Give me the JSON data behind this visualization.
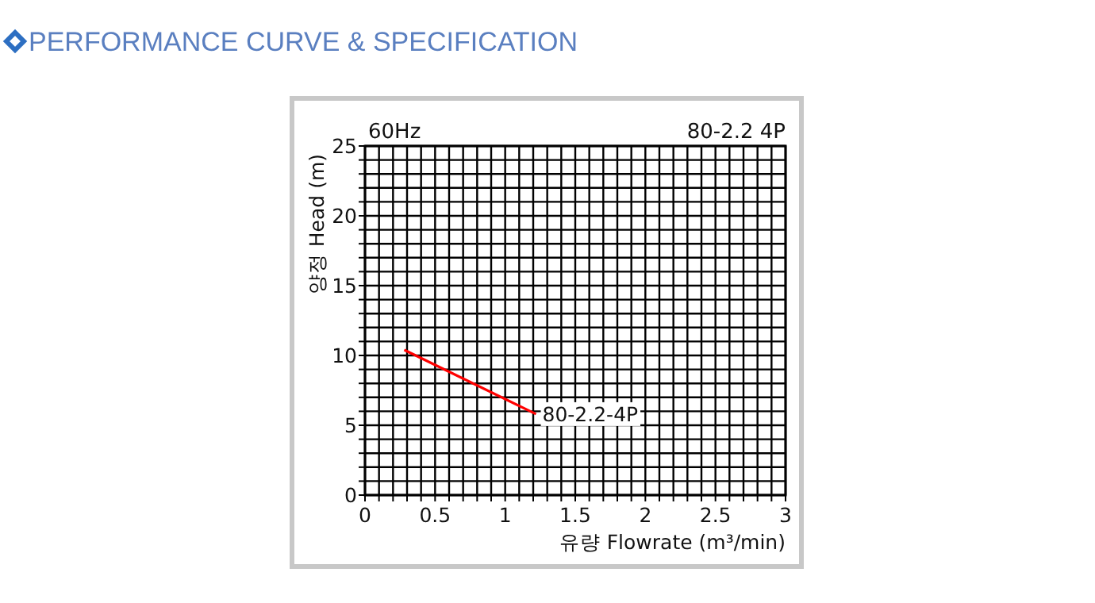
{
  "chart_data": {
    "type": "line",
    "title": "PERFORMANCE CURVE & SPECIFICATION",
    "xlabel": "유량 Flowrate (m³/min)",
    "ylabel": "양정 Head (m)",
    "annotations": [
      "60Hz",
      "80-2.2 4P"
    ],
    "series": [
      {
        "name": "80-2.2-4P",
        "color": "#ff0000",
        "x": [
          0.28,
          1.22
        ],
        "values": [
          10.4,
          5.8
        ]
      }
    ],
    "xlim": [
      0,
      3
    ],
    "ylim": [
      0,
      25
    ],
    "xticks": [
      0,
      {
        "value": 0.1,
        "label": null
      },
      {
        "value": 0.2,
        "label": null
      },
      {
        "value": 0.3,
        "label": null
      },
      {
        "value": 0.4,
        "label": null
      },
      0.5,
      {
        "value": 0.6,
        "label": null
      },
      {
        "value": 0.7,
        "label": null
      },
      {
        "value": 0.8,
        "label": null
      },
      {
        "value": 0.9,
        "label": null
      },
      1,
      {
        "value": 1.1,
        "label": null
      },
      {
        "value": 1.2,
        "label": null
      },
      {
        "value": 1.3,
        "label": null
      },
      {
        "value": 1.4,
        "label": null
      },
      1.5,
      {
        "value": 1.6,
        "label": null
      },
      {
        "value": 1.7,
        "label": null
      },
      {
        "value": 1.8,
        "label": null
      },
      {
        "value": 1.9,
        "label": null
      },
      2,
      {
        "value": 2.1,
        "label": null
      },
      {
        "value": 2.2,
        "label": null
      },
      {
        "value": 2.3,
        "label": null
      },
      {
        "value": 2.4,
        "label": null
      },
      2.5,
      {
        "value": 2.6,
        "label": null
      },
      {
        "value": 2.7,
        "label": null
      },
      {
        "value": 2.8,
        "label": null
      },
      {
        "value": 2.9,
        "label": null
      },
      3
    ],
    "yticks": [
      0,
      {
        "value": 1,
        "label": null
      },
      {
        "value": 2,
        "label": null
      },
      {
        "value": 3,
        "label": null
      },
      {
        "value": 4,
        "label": null
      },
      5,
      {
        "value": 6,
        "label": null
      },
      {
        "value": 7,
        "label": null
      },
      {
        "value": 8,
        "label": null
      },
      {
        "value": 9,
        "label": null
      },
      10,
      {
        "value": 11,
        "label": null
      },
      {
        "value": 12,
        "label": null
      },
      {
        "value": 13,
        "label": null
      },
      {
        "value": 14,
        "label": null
      },
      15,
      {
        "value": 16,
        "label": null
      },
      {
        "value": 17,
        "label": null
      },
      {
        "value": 18,
        "label": null
      },
      {
        "value": 19,
        "label": null
      },
      20,
      {
        "value": 21,
        "label": null
      },
      {
        "value": 22,
        "label": null
      },
      {
        "value": 23,
        "label": null
      },
      {
        "value": 24,
        "label": null
      },
      25
    ],
    "grid": true,
    "marker": "none",
    "line_style": "solid"
  }
}
